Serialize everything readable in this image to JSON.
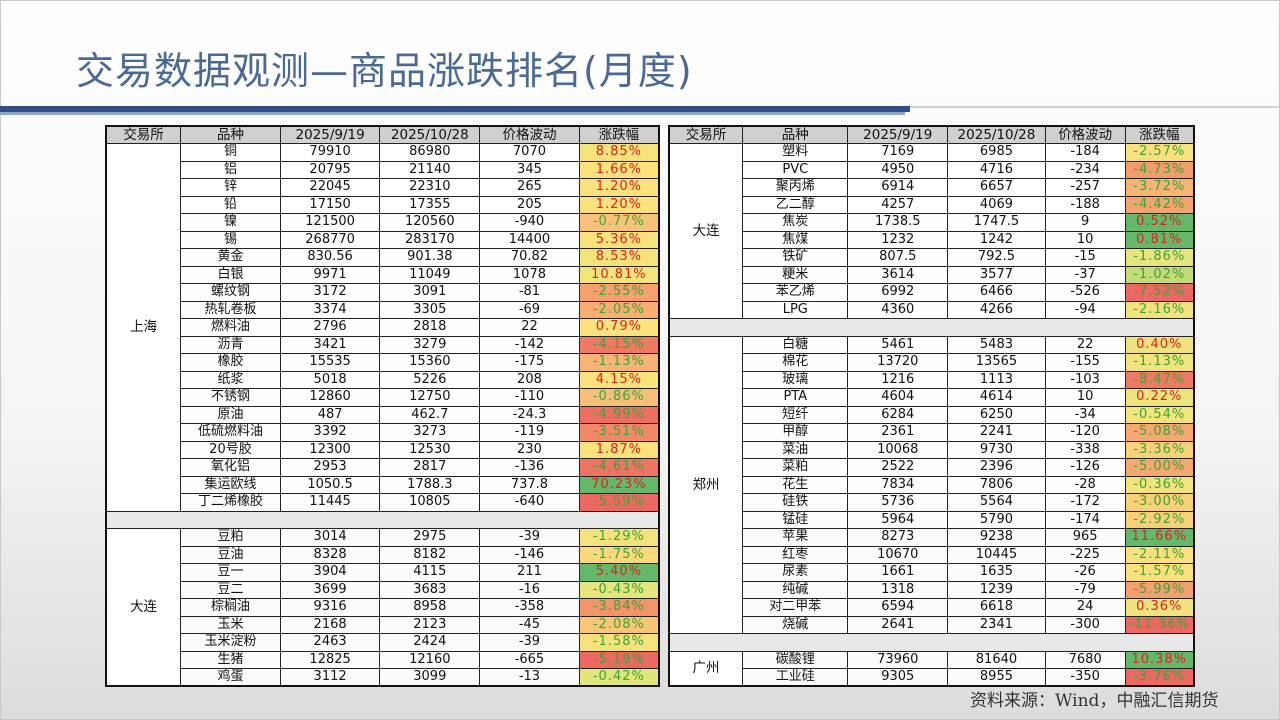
{
  "title": "交易数据观测—商品涨跌排名(月度)",
  "source": "资料来源：Wind，中融汇信期货",
  "headers": [
    "交易所",
    "品种",
    "2025/9/19",
    "2025/10/28",
    "价格波动",
    "涨跌幅"
  ],
  "colors": {
    "title": "#4a6a96",
    "accent_bar": "#2d4f86",
    "positive_text": "#e02020",
    "negative_text": "#3aa33a"
  },
  "left_table": [
    {
      "exchange": "上海",
      "rows": [
        [
          "铜",
          "79910",
          "86980",
          "7070",
          "8.85%",
          "#f3e37a"
        ],
        [
          "铝",
          "20795",
          "21140",
          "345",
          "1.66%",
          "#fbe27c"
        ],
        [
          "锌",
          "22045",
          "22310",
          "265",
          "1.20%",
          "#fbe27c"
        ],
        [
          "铅",
          "17150",
          "17355",
          "205",
          "1.20%",
          "#fbe27c"
        ],
        [
          "镍",
          "121500",
          "120560",
          "-940",
          "-0.77%",
          "#f9c27a"
        ],
        [
          "锡",
          "268770",
          "283170",
          "14400",
          "5.36%",
          "#f8e27c"
        ],
        [
          "黄金",
          "830.56",
          "901.38",
          "70.82",
          "8.53%",
          "#f3e37a"
        ],
        [
          "白银",
          "9971",
          "11049",
          "1078",
          "10.81%",
          "#efe57a"
        ],
        [
          "螺纹钢",
          "3172",
          "3091",
          "-81",
          "-2.55%",
          "#f6a070"
        ],
        [
          "热轧卷板",
          "3374",
          "3305",
          "-69",
          "-2.05%",
          "#f8ae72"
        ],
        [
          "燃料油",
          "2796",
          "2818",
          "22",
          "0.79%",
          "#fbe27c"
        ],
        [
          "沥青",
          "3421",
          "3279",
          "-142",
          "-4.15%",
          "#ef7a64"
        ],
        [
          "橡胶",
          "15535",
          "15360",
          "-175",
          "-1.13%",
          "#f8b474"
        ],
        [
          "纸浆",
          "5018",
          "5226",
          "208",
          "4.15%",
          "#fae27c"
        ],
        [
          "不锈钢",
          "12860",
          "12750",
          "-110",
          "-0.86%",
          "#f9be78"
        ],
        [
          "原油",
          "487",
          "462.7",
          "-24.3",
          "-4.99%",
          "#ee6e62"
        ],
        [
          "低硫燃料油",
          "3392",
          "3273",
          "-119",
          "-3.51%",
          "#f08a66"
        ],
        [
          "20号胶",
          "12300",
          "12530",
          "230",
          "1.87%",
          "#fbe27c"
        ],
        [
          "氧化铝",
          "2953",
          "2817",
          "-136",
          "-4.61%",
          "#ee7464"
        ],
        [
          "集运欧线",
          "1050.5",
          "1788.3",
          "737.8",
          "70.23%",
          "#63b86a"
        ],
        [
          "丁二烯橡胶",
          "11445",
          "10805",
          "-640",
          "-5.59%",
          "#ec6862"
        ]
      ]
    },
    {
      "exchange": "大连",
      "rows": [
        [
          "豆粕",
          "3014",
          "2975",
          "-39",
          "-1.29%",
          "#f6e27c"
        ],
        [
          "豆油",
          "8328",
          "8182",
          "-146",
          "-1.75%",
          "#fbd87a"
        ],
        [
          "豆一",
          "3904",
          "4115",
          "211",
          "5.40%",
          "#63b86a"
        ],
        [
          "豆二",
          "3699",
          "3683",
          "-16",
          "-0.43%",
          "#e6e47c"
        ],
        [
          "棕榈油",
          "9316",
          "8958",
          "-358",
          "-3.84%",
          "#f3946a"
        ],
        [
          "玉米",
          "2168",
          "2123",
          "-45",
          "-2.08%",
          "#f9c676"
        ],
        [
          "玉米淀粉",
          "2463",
          "2424",
          "-39",
          "-1.58%",
          "#f6e27c"
        ],
        [
          "生猪",
          "12825",
          "12160",
          "-665",
          "-5.19%",
          "#ec6862"
        ],
        [
          "鸡蛋",
          "3112",
          "3099",
          "-13",
          "-0.42%",
          "#e2e47c"
        ]
      ]
    }
  ],
  "right_table": [
    {
      "exchange": "大连",
      "rows": [
        [
          "塑料",
          "7169",
          "6985",
          "-184",
          "-2.57%",
          "#f8e07c"
        ],
        [
          "PVC",
          "4950",
          "4716",
          "-234",
          "-4.73%",
          "#f49c6c"
        ],
        [
          "聚丙烯",
          "6914",
          "6657",
          "-257",
          "-3.72%",
          "#f8b474"
        ],
        [
          "乙二醇",
          "4257",
          "4069",
          "-188",
          "-4.42%",
          "#f5a46e"
        ],
        [
          "焦炭",
          "1738.5",
          "1747.5",
          "9",
          "0.52%",
          "#63b86a"
        ],
        [
          "焦煤",
          "1232",
          "1242",
          "10",
          "0.81%",
          "#63b86a"
        ],
        [
          "铁矿",
          "807.5",
          "792.5",
          "-15",
          "-1.86%",
          "#e6e47c"
        ],
        [
          "粳米",
          "3614",
          "3577",
          "-37",
          "-1.02%",
          "#c4dc78"
        ],
        [
          "苯乙烯",
          "6992",
          "6466",
          "-526",
          "-7.52%",
          "#ec6862"
        ],
        [
          "LPG",
          "4360",
          "4266",
          "-94",
          "-2.16%",
          "#f2e27c"
        ]
      ]
    },
    {
      "exchange": "郑州",
      "rows": [
        [
          "白糖",
          "5461",
          "5483",
          "22",
          "0.40%",
          "#f0e27c"
        ],
        [
          "棉花",
          "13720",
          "13565",
          "-155",
          "-1.13%",
          "#f3e37c"
        ],
        [
          "玻璃",
          "1216",
          "1113",
          "-103",
          "-8.47%",
          "#ef7a64"
        ],
        [
          "PTA",
          "4604",
          "4614",
          "10",
          "0.22%",
          "#eee47c"
        ],
        [
          "短纤",
          "6284",
          "6250",
          "-34",
          "-0.54%",
          "#f5e47c"
        ],
        [
          "甲醇",
          "2361",
          "2241",
          "-120",
          "-5.08%",
          "#f6a870"
        ],
        [
          "菜油",
          "10068",
          "9730",
          "-338",
          "-3.36%",
          "#f8d078"
        ],
        [
          "菜粕",
          "2522",
          "2396",
          "-126",
          "-5.00%",
          "#f6a870"
        ],
        [
          "花生",
          "7834",
          "7806",
          "-28",
          "-0.36%",
          "#f3e37c"
        ],
        [
          "硅铁",
          "5736",
          "5564",
          "-172",
          "-3.00%",
          "#f8d078"
        ],
        [
          "锰硅",
          "5964",
          "5790",
          "-174",
          "-2.92%",
          "#f8d078"
        ],
        [
          "苹果",
          "8273",
          "9238",
          "965",
          "11.66%",
          "#63b86a"
        ],
        [
          "红枣",
          "10670",
          "10445",
          "-225",
          "-2.11%",
          "#f9e07c"
        ],
        [
          "尿素",
          "1661",
          "1635",
          "-26",
          "-1.57%",
          "#f9e07c"
        ],
        [
          "纯碱",
          "1318",
          "1239",
          "-79",
          "-5.99%",
          "#f4a06e"
        ],
        [
          "对二甲苯",
          "6594",
          "6618",
          "24",
          "0.36%",
          "#f0e27c"
        ],
        [
          "烧碱",
          "2641",
          "2341",
          "-300",
          "-11.36%",
          "#ec6862"
        ]
      ]
    },
    {
      "exchange": "广州",
      "rows": [
        [
          "碳酸锂",
          "73960",
          "81640",
          "7680",
          "10.38%",
          "#63b86a"
        ],
        [
          "工业硅",
          "9305",
          "8955",
          "-350",
          "-3.76%",
          "#ec6862"
        ]
      ]
    }
  ]
}
